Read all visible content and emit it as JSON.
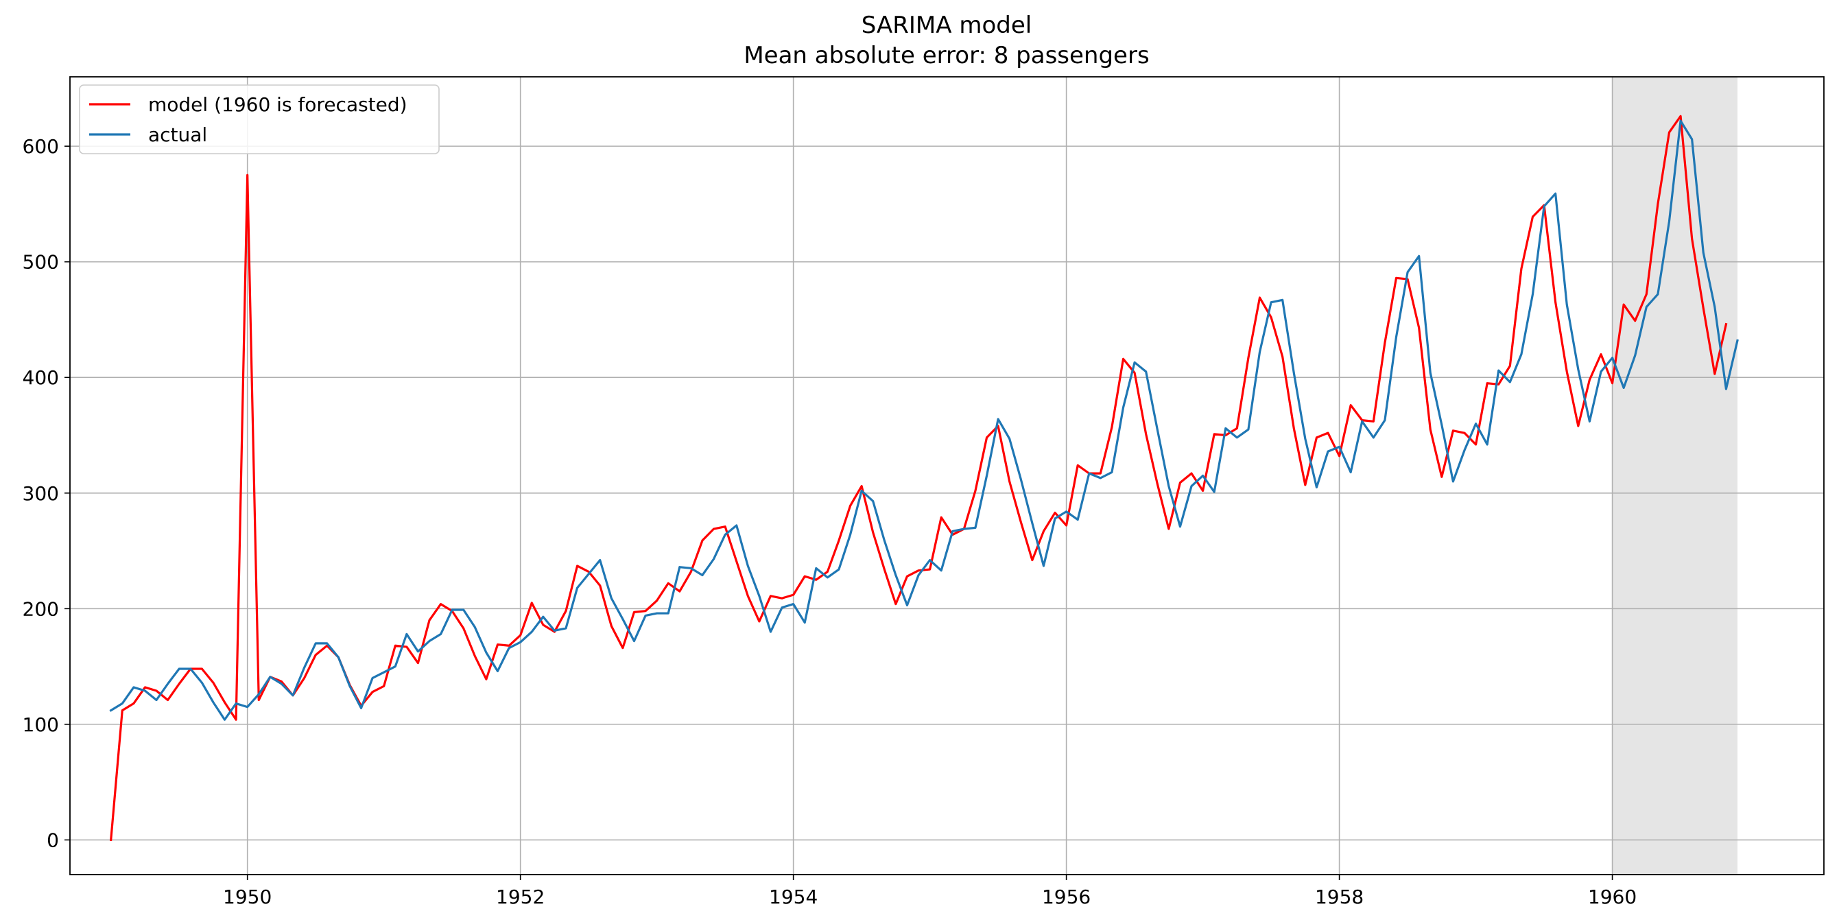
{
  "chart_data": {
    "type": "line",
    "title": "SARIMA model",
    "subtitle": "Mean absolute error: 8 passengers",
    "xlabel": "",
    "ylabel": "",
    "xlim": [
      1948.7,
      1961.55
    ],
    "ylim": [
      -30,
      660
    ],
    "xticks": [
      1950,
      1952,
      1954,
      1956,
      1958,
      1960
    ],
    "yticks": [
      0,
      100,
      200,
      300,
      400,
      500,
      600
    ],
    "grid": true,
    "legend_position": "top-left",
    "forecast_region": [
      1960.0,
      1960.9167
    ],
    "forecast_region_color": "#e5e5e5",
    "start_year": 1949,
    "step": 0.0833333,
    "series": [
      {
        "name": "model (1960 is forecasted)",
        "color": "#ff0000",
        "values": [
          0,
          112,
          118,
          132,
          129,
          121,
          135,
          148,
          148,
          136,
          119,
          104,
          575,
          121,
          141,
          137,
          125,
          140,
          160,
          168,
          158,
          134,
          116,
          128,
          133,
          168,
          167,
          153,
          190,
          204,
          198,
          183,
          159,
          139,
          169,
          168,
          177,
          205,
          186,
          180,
          198,
          237,
          232,
          220,
          185,
          166,
          197,
          198,
          207,
          222,
          215,
          232,
          259,
          269,
          271,
          241,
          211,
          189,
          211,
          209,
          212,
          228,
          225,
          232,
          259,
          289,
          306,
          266,
          234,
          204,
          228,
          233,
          234,
          279,
          264,
          269,
          302,
          348,
          358,
          310,
          275,
          242,
          267,
          283,
          272,
          324,
          317,
          317,
          357,
          416,
          404,
          351,
          308,
          269,
          309,
          317,
          302,
          351,
          350,
          356,
          417,
          469,
          452,
          418,
          356,
          307,
          348,
          352,
          332,
          376,
          363,
          362,
          430,
          486,
          485,
          443,
          355,
          314,
          354,
          352,
          342,
          395,
          394,
          410,
          494,
          539,
          549,
          465,
          405,
          358,
          398,
          420,
          395,
          463,
          449,
          472,
          550,
          612,
          626,
          520,
          460,
          403,
          446
        ],
        "style": "solid"
      },
      {
        "name": "actual",
        "color": "#1f77b4",
        "values": [
          112,
          118,
          132,
          129,
          121,
          135,
          148,
          148,
          136,
          119,
          104,
          118,
          115,
          126,
          141,
          135,
          125,
          149,
          170,
          170,
          158,
          133,
          114,
          140,
          145,
          150,
          178,
          163,
          172,
          178,
          199,
          199,
          184,
          162,
          146,
          166,
          171,
          180,
          193,
          181,
          183,
          218,
          230,
          242,
          209,
          191,
          172,
          194,
          196,
          196,
          236,
          235,
          229,
          243,
          264,
          272,
          237,
          211,
          180,
          201,
          204,
          188,
          235,
          227,
          234,
          264,
          302,
          293,
          259,
          229,
          203,
          229,
          242,
          233,
          267,
          269,
          270,
          315,
          364,
          347,
          312,
          274,
          237,
          278,
          284,
          277,
          317,
          313,
          318,
          374,
          413,
          405,
          355,
          306,
          271,
          306,
          315,
          301,
          356,
          348,
          355,
          422,
          465,
          467,
          404,
          347,
          305,
          336,
          340,
          318,
          362,
          348,
          363,
          435,
          491,
          505,
          404,
          359,
          310,
          337,
          360,
          342,
          406,
          396,
          420,
          472,
          548,
          559,
          463,
          407,
          362,
          405,
          417,
          391,
          419,
          461,
          472,
          535,
          622,
          606,
          508,
          461,
          390,
          432
        ],
        "style": "solid"
      }
    ]
  }
}
